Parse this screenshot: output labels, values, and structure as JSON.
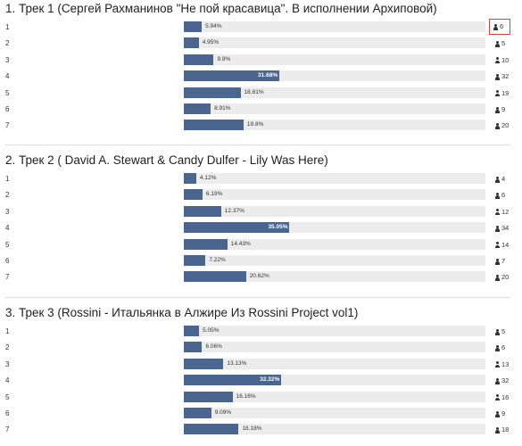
{
  "sections": [
    {
      "title": "1. Трек 1 (Сергей Рахманинов \"Не пой красавица\". В исполнении Архиповой)",
      "rows": [
        {
          "num": "1",
          "pct": "5.94%",
          "value": 5.94,
          "count": "6",
          "highlight": true
        },
        {
          "num": "2",
          "pct": "4.95%",
          "value": 4.95,
          "count": "5"
        },
        {
          "num": "3",
          "pct": "9.9%",
          "value": 9.9,
          "count": "10"
        },
        {
          "num": "4",
          "pct": "31.68%",
          "value": 31.68,
          "count": "32",
          "inside": true
        },
        {
          "num": "5",
          "pct": "18.81%",
          "value": 18.81,
          "count": "19"
        },
        {
          "num": "6",
          "pct": "8.91%",
          "value": 8.91,
          "count": "9"
        },
        {
          "num": "7",
          "pct": "19.8%",
          "value": 19.8,
          "count": "20"
        }
      ]
    },
    {
      "title": "2. Трек 2 ( David A. Stewart & Candy Dulfer - Lily Was Here)",
      "rows": [
        {
          "num": "1",
          "pct": "4.12%",
          "value": 4.12,
          "count": "4"
        },
        {
          "num": "2",
          "pct": "6.19%",
          "value": 6.19,
          "count": "6"
        },
        {
          "num": "3",
          "pct": "12.37%",
          "value": 12.37,
          "count": "12"
        },
        {
          "num": "4",
          "pct": "35.05%",
          "value": 35.05,
          "count": "34",
          "inside": true
        },
        {
          "num": "5",
          "pct": "14.43%",
          "value": 14.43,
          "count": "14"
        },
        {
          "num": "6",
          "pct": "7.22%",
          "value": 7.22,
          "count": "7"
        },
        {
          "num": "7",
          "pct": "20.62%",
          "value": 20.62,
          "count": "20"
        }
      ]
    },
    {
      "title": "3. Трек 3 (Rossini - Итальянка в Алжире Из Rossini Project vol1)",
      "rows": [
        {
          "num": "1",
          "pct": "5.05%",
          "value": 5.05,
          "count": "5"
        },
        {
          "num": "2",
          "pct": "6.06%",
          "value": 6.06,
          "count": "6"
        },
        {
          "num": "3",
          "pct": "13.13%",
          "value": 13.13,
          "count": "13"
        },
        {
          "num": "4",
          "pct": "32.32%",
          "value": 32.32,
          "count": "32",
          "inside": true
        },
        {
          "num": "5",
          "pct": "16.16%",
          "value": 16.16,
          "count": "16"
        },
        {
          "num": "6",
          "pct": "9.09%",
          "value": 9.09,
          "count": "9"
        },
        {
          "num": "7",
          "pct": "18.18%",
          "value": 18.18,
          "count": "18"
        }
      ]
    }
  ],
  "colors": {
    "bar": "#4a6590",
    "track": "#ececec",
    "highlight_border": "#d44a3a"
  },
  "icons": {
    "voter_count": "user-icon"
  }
}
